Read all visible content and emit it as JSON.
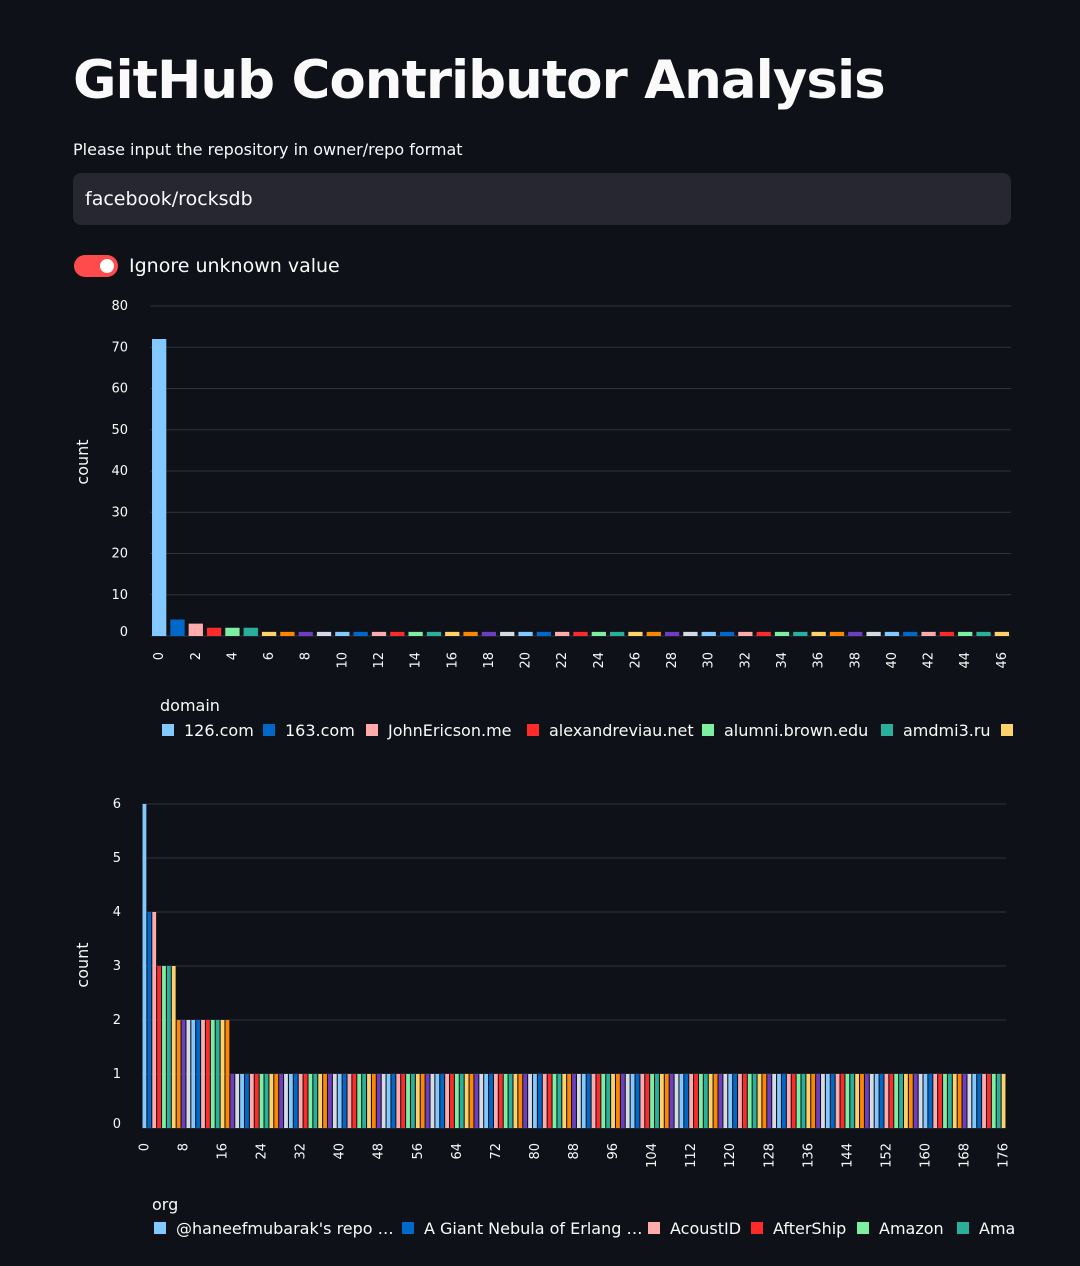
{
  "page": {
    "title": "GitHub Contributor Analysis",
    "input_label": "Please input the repository in owner/repo format",
    "repo_value": "facebook/rocksdb",
    "toggle_label": "Ignore unknown value",
    "toggle_on": true
  },
  "colors": {
    "palette": [
      "#83c9ff",
      "#0068c9",
      "#ffabab",
      "#ff2b2b",
      "#7defa1",
      "#29b09d",
      "#ffd16a",
      "#ff8700",
      "#6d3fc0",
      "#d5dae5"
    ],
    "accent": "#ff4b4b",
    "grid": "#31333f"
  },
  "chart_data": [
    {
      "type": "bar",
      "ylabel": "count",
      "legend_title": "domain",
      "ylim": [
        0,
        80
      ],
      "yticks": [
        0,
        10,
        20,
        30,
        40,
        50,
        60,
        70,
        80
      ],
      "xticks_step": 2,
      "values": [
        72,
        4,
        3,
        2,
        2,
        2,
        1,
        1,
        1,
        1,
        1,
        1,
        1,
        1,
        1,
        1,
        1,
        1,
        1,
        1,
        1,
        1,
        1,
        1,
        1,
        1,
        1,
        1,
        1,
        1,
        1,
        1,
        1,
        1,
        1,
        1,
        1,
        1,
        1,
        1,
        1,
        1,
        1,
        1,
        1,
        1,
        1
      ],
      "legend": [
        "126.com",
        "163.com",
        "JohnEricson.me",
        "alexandreviau.net",
        "alumni.brown.edu",
        "amdmi3.ru",
        ""
      ]
    },
    {
      "type": "bar",
      "ylabel": "count",
      "legend_title": "org",
      "ylim": [
        0,
        6
      ],
      "yticks": [
        0,
        1,
        2,
        3,
        4,
        5,
        6
      ],
      "xticks_step": 8,
      "values": [
        6,
        4,
        4,
        3,
        3,
        3,
        3,
        2,
        2,
        2,
        2,
        2,
        2,
        2,
        2,
        2,
        2,
        2,
        1,
        1,
        1,
        1,
        1,
        1,
        1,
        1,
        1,
        1,
        1,
        1,
        1,
        1,
        1,
        1,
        1,
        1,
        1,
        1,
        1,
        1,
        1,
        1,
        1,
        1,
        1,
        1,
        1,
        1,
        1,
        1,
        1,
        1,
        1,
        1,
        1,
        1,
        1,
        1,
        1,
        1,
        1,
        1,
        1,
        1,
        1,
        1,
        1,
        1,
        1,
        1,
        1,
        1,
        1,
        1,
        1,
        1,
        1,
        1,
        1,
        1,
        1,
        1,
        1,
        1,
        1,
        1,
        1,
        1,
        1,
        1,
        1,
        1,
        1,
        1,
        1,
        1,
        1,
        1,
        1,
        1,
        1,
        1,
        1,
        1,
        1,
        1,
        1,
        1,
        1,
        1,
        1,
        1,
        1,
        1,
        1,
        1,
        1,
        1,
        1,
        1,
        1,
        1,
        1,
        1,
        1,
        1,
        1,
        1,
        1,
        1,
        1,
        1,
        1,
        1,
        1,
        1,
        1,
        1,
        1,
        1,
        1,
        1,
        1,
        1,
        1,
        1,
        1,
        1,
        1,
        1,
        1,
        1,
        1,
        1,
        1,
        1,
        1,
        1,
        1,
        1,
        1,
        1,
        1,
        1,
        1,
        1,
        1,
        1,
        1,
        1,
        1,
        1,
        1,
        1,
        1,
        1,
        1
      ],
      "legend": [
        "@haneefmubarak's repo …",
        "A Giant Nebula of Erlang …",
        "AcoustID",
        "AfterShip",
        "Amazon",
        "Ama"
      ]
    }
  ]
}
